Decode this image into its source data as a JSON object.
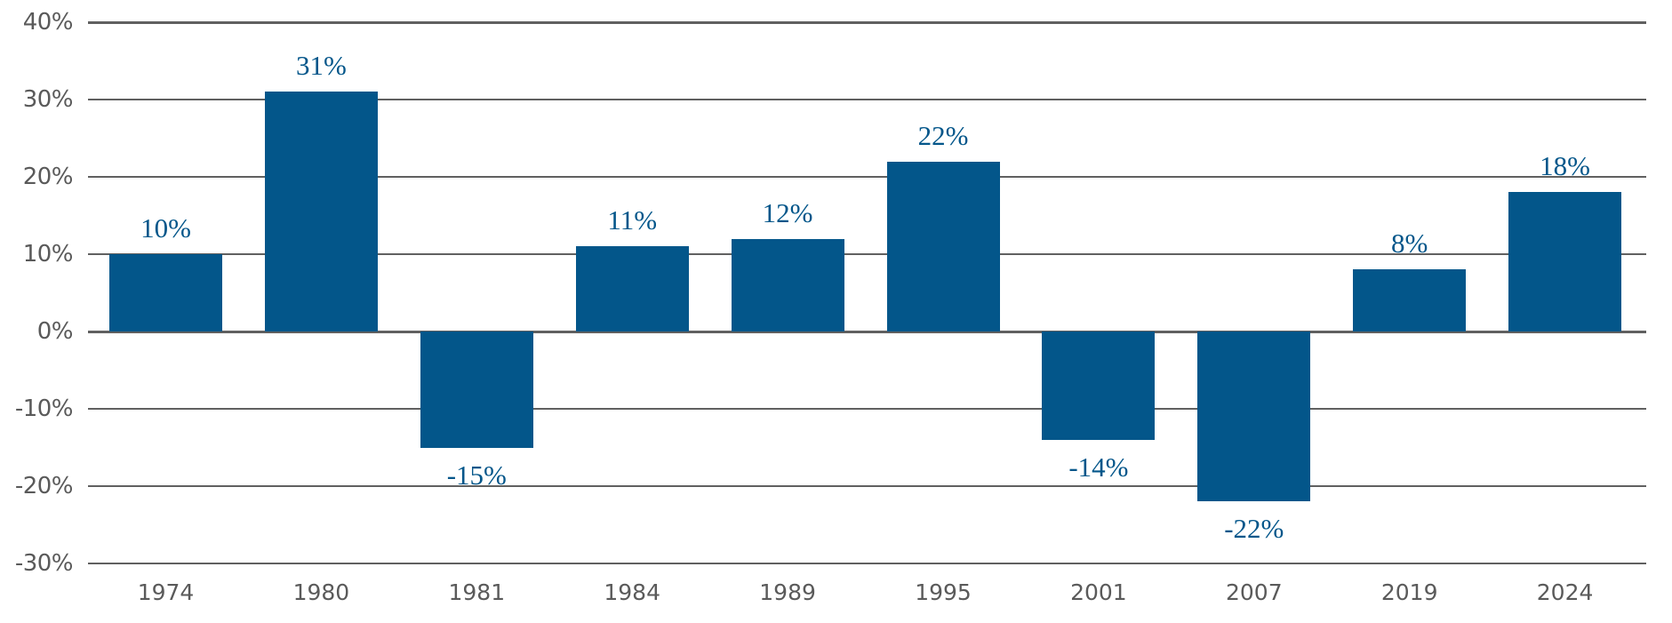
{
  "chart_data": {
    "type": "bar",
    "title": "",
    "xlabel": "",
    "ylabel": "",
    "categories": [
      "1974",
      "1980",
      "1981",
      "1984",
      "1989",
      "1995",
      "2001",
      "2007",
      "2019",
      "2024"
    ],
    "values": [
      10,
      31,
      -15,
      11,
      12,
      22,
      -14,
      -22,
      8,
      18
    ],
    "data_labels": [
      "10%",
      "31%",
      "-15%",
      "11%",
      "12%",
      "22%",
      "-14%",
      "-22%",
      "8%",
      "18%"
    ],
    "ylim": [
      -30,
      40
    ],
    "yticks": [
      40,
      30,
      20,
      10,
      0,
      -10,
      -20,
      -30
    ],
    "ytick_labels": [
      "40%",
      "30%",
      "20%",
      "10%",
      "0%",
      "-10%",
      "-20%",
      "-30%"
    ],
    "grid": true,
    "legend": null
  },
  "colors": {
    "bar": "#03568a",
    "label": "#03568a",
    "grid": "#606060",
    "axis_text": "#5a5a5a"
  }
}
